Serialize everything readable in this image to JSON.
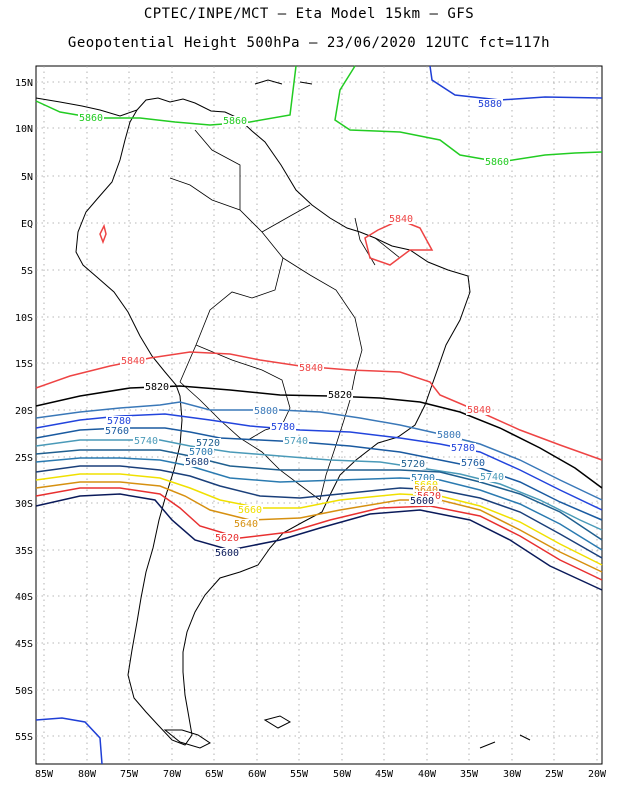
{
  "title_line1": "CPTEC/INPE/MCT –  Eta Model 15km – GFS",
  "title_line2": "Geopotential Height 500hPa – 23/06/2020 12UTC fct=117h",
  "lat_ticks": [
    "15N",
    "10N",
    "5N",
    "EQ",
    "5S",
    "10S",
    "15S",
    "20S",
    "25S",
    "30S",
    "35S",
    "40S",
    "45S",
    "50S",
    "55S"
  ],
  "lon_ticks": [
    "85W",
    "80W",
    "75W",
    "70W",
    "65W",
    "60W",
    "55W",
    "50W",
    "45W",
    "40W",
    "35W",
    "30W",
    "25W",
    "20W"
  ],
  "colors": {
    "c5880": "#1f3fd6",
    "c5860": "#22cc22",
    "c5840": "#ee4444",
    "c5820": "#000000",
    "c5800": "#3a78b8",
    "c5780": "#2244dd",
    "c5760": "#1a5aa0",
    "c5740": "#4a9ab8",
    "c5720": "#1f5f8f",
    "c5700": "#2a7ab0",
    "c5680": "#1a3f7a",
    "c5660": "#f0e000",
    "c5640": "#d69010",
    "c5620": "#e83030",
    "c5600": "#0a1a5a"
  },
  "contour_labels": [
    {
      "text": "5880",
      "color": "c5880"
    },
    {
      "text": "5860",
      "color": "c5860"
    },
    {
      "text": "5860",
      "color": "c5860"
    },
    {
      "text": "5860",
      "color": "c5860"
    },
    {
      "text": "5840",
      "color": "c5840"
    },
    {
      "text": "5840",
      "color": "c5840"
    },
    {
      "text": "5840",
      "color": "c5840"
    },
    {
      "text": "5840",
      "color": "c5840"
    },
    {
      "text": "5820",
      "color": "c5820"
    },
    {
      "text": "5820",
      "color": "c5820"
    },
    {
      "text": "5800",
      "color": "c5800"
    },
    {
      "text": "5800",
      "color": "c5800"
    },
    {
      "text": "5780",
      "color": "c5780"
    },
    {
      "text": "5780",
      "color": "c5780"
    },
    {
      "text": "5780",
      "color": "c5780"
    },
    {
      "text": "5760",
      "color": "c5760"
    },
    {
      "text": "5760",
      "color": "c5760"
    },
    {
      "text": "5740",
      "color": "c5740"
    },
    {
      "text": "5740",
      "color": "c5740"
    },
    {
      "text": "5740",
      "color": "c5740"
    },
    {
      "text": "5720",
      "color": "c5720"
    },
    {
      "text": "5720",
      "color": "c5720"
    },
    {
      "text": "5700",
      "color": "c5700"
    },
    {
      "text": "5700",
      "color": "c5700"
    },
    {
      "text": "5680",
      "color": "c5680"
    },
    {
      "text": "5660",
      "color": "c5660"
    },
    {
      "text": "5660",
      "color": "c5660"
    },
    {
      "text": "5640",
      "color": "c5640"
    },
    {
      "text": "5640",
      "color": "c5640"
    },
    {
      "text": "5620",
      "color": "c5620"
    },
    {
      "text": "5620",
      "color": "c5620"
    },
    {
      "text": "5600",
      "color": "c5600"
    },
    {
      "text": "5600",
      "color": "c5600"
    }
  ]
}
